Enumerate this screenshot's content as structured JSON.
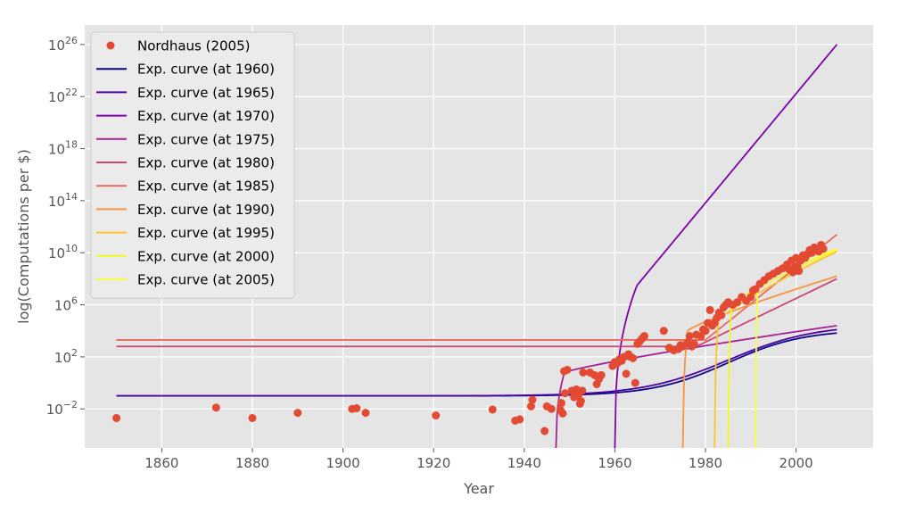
{
  "chart_data": {
    "type": "scatter",
    "title": "",
    "xlabel": "Year",
    "ylabel": "log(Computations per $)",
    "xlim": [
      1843,
      2017
    ],
    "ylim_log10": [
      -5,
      27.5
    ],
    "yscale": "log",
    "grid": true,
    "legend_position": "top-left",
    "x_ticks": [
      1860,
      1880,
      1900,
      1920,
      1940,
      1960,
      1980,
      2000
    ],
    "y_ticks_exponents": [
      -2,
      2,
      6,
      10,
      14,
      18,
      22,
      26
    ],
    "y_tick_base": "10",
    "scatter": {
      "name": "Nordhaus (2005)",
      "color": "#e24a33",
      "points": [
        [
          1850,
          -2.7
        ],
        [
          1872,
          -1.9
        ],
        [
          1880,
          -2.7
        ],
        [
          1890,
          -2.3
        ],
        [
          1902,
          -2.0
        ],
        [
          1903,
          -1.95
        ],
        [
          1905,
          -2.3
        ],
        [
          1920.5,
          -2.5
        ],
        [
          1933,
          -2.05
        ],
        [
          1938,
          -2.9
        ],
        [
          1939,
          -2.8
        ],
        [
          1941.5,
          -1.8
        ],
        [
          1941.8,
          -1.3
        ],
        [
          1944.5,
          -3.7
        ],
        [
          1945,
          -1.8
        ],
        [
          1946,
          -2.0
        ],
        [
          1948,
          -2.1
        ],
        [
          1948.2,
          -1.55
        ],
        [
          1948.5,
          -2.35
        ],
        [
          1948.8,
          0.9
        ],
        [
          1949,
          -0.8
        ],
        [
          1949.5,
          1.0
        ],
        [
          1950.5,
          -0.6
        ],
        [
          1951,
          -1.1
        ],
        [
          1951.5,
          -0.5
        ],
        [
          1952,
          -0.9
        ],
        [
          1952.3,
          -1.6
        ],
        [
          1952.5,
          -1.4
        ],
        [
          1952.8,
          -0.6
        ],
        [
          1953,
          0.8
        ],
        [
          1954.5,
          0.8
        ],
        [
          1955.5,
          0.6
        ],
        [
          1956,
          -0.1
        ],
        [
          1956.5,
          0.3
        ],
        [
          1957,
          0.6
        ],
        [
          1959.5,
          1.3
        ],
        [
          1960,
          1.6
        ],
        [
          1960.5,
          1.5
        ],
        [
          1961,
          1.8
        ],
        [
          1961.5,
          1.7
        ],
        [
          1962,
          2.0
        ],
        [
          1962.5,
          0.7
        ],
        [
          1963,
          2.2
        ],
        [
          1963.5,
          2.0
        ],
        [
          1964,
          1.9
        ],
        [
          1964.5,
          0.0
        ],
        [
          1965,
          3.0
        ],
        [
          1965.5,
          3.2
        ],
        [
          1966,
          3.4
        ],
        [
          1966.5,
          3.6
        ],
        [
          1970.8,
          4.0
        ],
        [
          1972,
          2.7
        ],
        [
          1973,
          2.5
        ],
        [
          1974,
          2.6
        ],
        [
          1974.5,
          2.9
        ],
        [
          1975,
          2.8
        ],
        [
          1976,
          3.1
        ],
        [
          1976.5,
          3.6
        ],
        [
          1977,
          2.8
        ],
        [
          1977.5,
          3.0
        ],
        [
          1978,
          3.7
        ],
        [
          1979,
          3.6
        ],
        [
          1979.5,
          4.1
        ],
        [
          1980,
          4.0
        ],
        [
          1980.5,
          4.6
        ],
        [
          1981,
          5.6
        ],
        [
          1981.5,
          4.4
        ],
        [
          1982,
          4.6
        ],
        [
          1982.5,
          5.0
        ],
        [
          1983,
          5.4
        ],
        [
          1983.5,
          5.2
        ],
        [
          1984,
          5.8
        ],
        [
          1984.5,
          6.0
        ],
        [
          1985,
          6.2
        ],
        [
          1986,
          6.0
        ],
        [
          1987,
          6.2
        ],
        [
          1988,
          6.6
        ],
        [
          1989,
          6.3
        ],
        [
          1990,
          6.6
        ],
        [
          1990.5,
          7.1
        ],
        [
          1991,
          7.2
        ],
        [
          1992,
          7.6
        ],
        [
          1993,
          7.9
        ],
        [
          1994,
          8.2
        ],
        [
          1995,
          8.4
        ],
        [
          1996,
          8.6
        ],
        [
          1997,
          8.8
        ],
        [
          1998,
          9.1
        ],
        [
          1998.5,
          8.7
        ],
        [
          1999,
          9.4
        ],
        [
          1999.3,
          8.5
        ],
        [
          1999.7,
          8.9
        ],
        [
          2000,
          9.6
        ],
        [
          2000.3,
          9.0
        ],
        [
          2000.6,
          8.6
        ],
        [
          2001,
          9.4
        ],
        [
          2001.5,
          9.8
        ],
        [
          2002,
          9.6
        ],
        [
          2002.5,
          9.9
        ],
        [
          2003,
          10.2
        ],
        [
          2003.5,
          10.0
        ],
        [
          2004,
          10.4
        ],
        [
          2005,
          10.1
        ],
        [
          2005.5,
          10.6
        ],
        [
          2006,
          10.3
        ]
      ]
    },
    "series": [
      {
        "name": "Exp. curve (at 1960)",
        "color": "#0d0887",
        "start": 1850,
        "end": 2009,
        "t0": 1960,
        "base": -1.0,
        "amp": 5.1,
        "k": 0.12,
        "asym": "logistic"
      },
      {
        "name": "Exp. curve (at 1965)",
        "color": "#4b03a1",
        "start": 1850,
        "end": 2009,
        "t0": 1960,
        "base": -1.0,
        "amp": 5.5,
        "k": 0.105,
        "asym": "logistic"
      },
      {
        "name": "Exp. curve (at 1970)",
        "color": "#7d03a8",
        "start": 1960,
        "end": 2009,
        "t0": 1960,
        "v0": -5.0,
        "v1": 26.0,
        "shape": "rise"
      },
      {
        "name": "Exp. curve (at 1975)",
        "color": "#a82296",
        "start": 1947,
        "end": 2009,
        "t0": 1947,
        "v0": -5.0,
        "v_mid": 0.8,
        "v1": 4.4,
        "shape": "sat"
      },
      {
        "name": "Exp. curve (at 1980)",
        "color": "#cb4679",
        "start": 1850,
        "end": 2009,
        "flat": 2.8,
        "t_flat_end": 1978,
        "v1": 8.0,
        "shape": "flatrise"
      },
      {
        "name": "Exp. curve (at 1985)",
        "color": "#e56b5d",
        "start": 1850,
        "end": 2009,
        "flat": 3.3,
        "t_flat_end": 1980,
        "v1": 11.4,
        "shape": "flatrise"
      },
      {
        "name": "Exp. curve (at 1990)",
        "color": "#f89441",
        "start": 1975,
        "end": 2009,
        "t0": 1975,
        "v0": -5.0,
        "v_mid": 4.0,
        "v1": 8.2,
        "shape": "sat"
      },
      {
        "name": "Exp. curve (at 1995)",
        "color": "#fdc328",
        "start": 1982,
        "end": 2009,
        "t0": 1982,
        "v0": -5.0,
        "v_mid": 4.8,
        "v1": 10.1,
        "shape": "sat"
      },
      {
        "name": "Exp. curve (at 2000)",
        "color": "#f0f921",
        "start": 1985,
        "end": 2009,
        "t0": 1985,
        "v0": -5.0,
        "v_mid": 6.0,
        "v1": 10.2,
        "shape": "sat"
      },
      {
        "name": "Exp. curve (at 2005)",
        "color": "#f7ff3c",
        "start": 1991,
        "end": 2009,
        "t0": 1991,
        "v0": -5.0,
        "v_mid": 7.5,
        "v1": 10.3,
        "shape": "sat"
      }
    ]
  }
}
